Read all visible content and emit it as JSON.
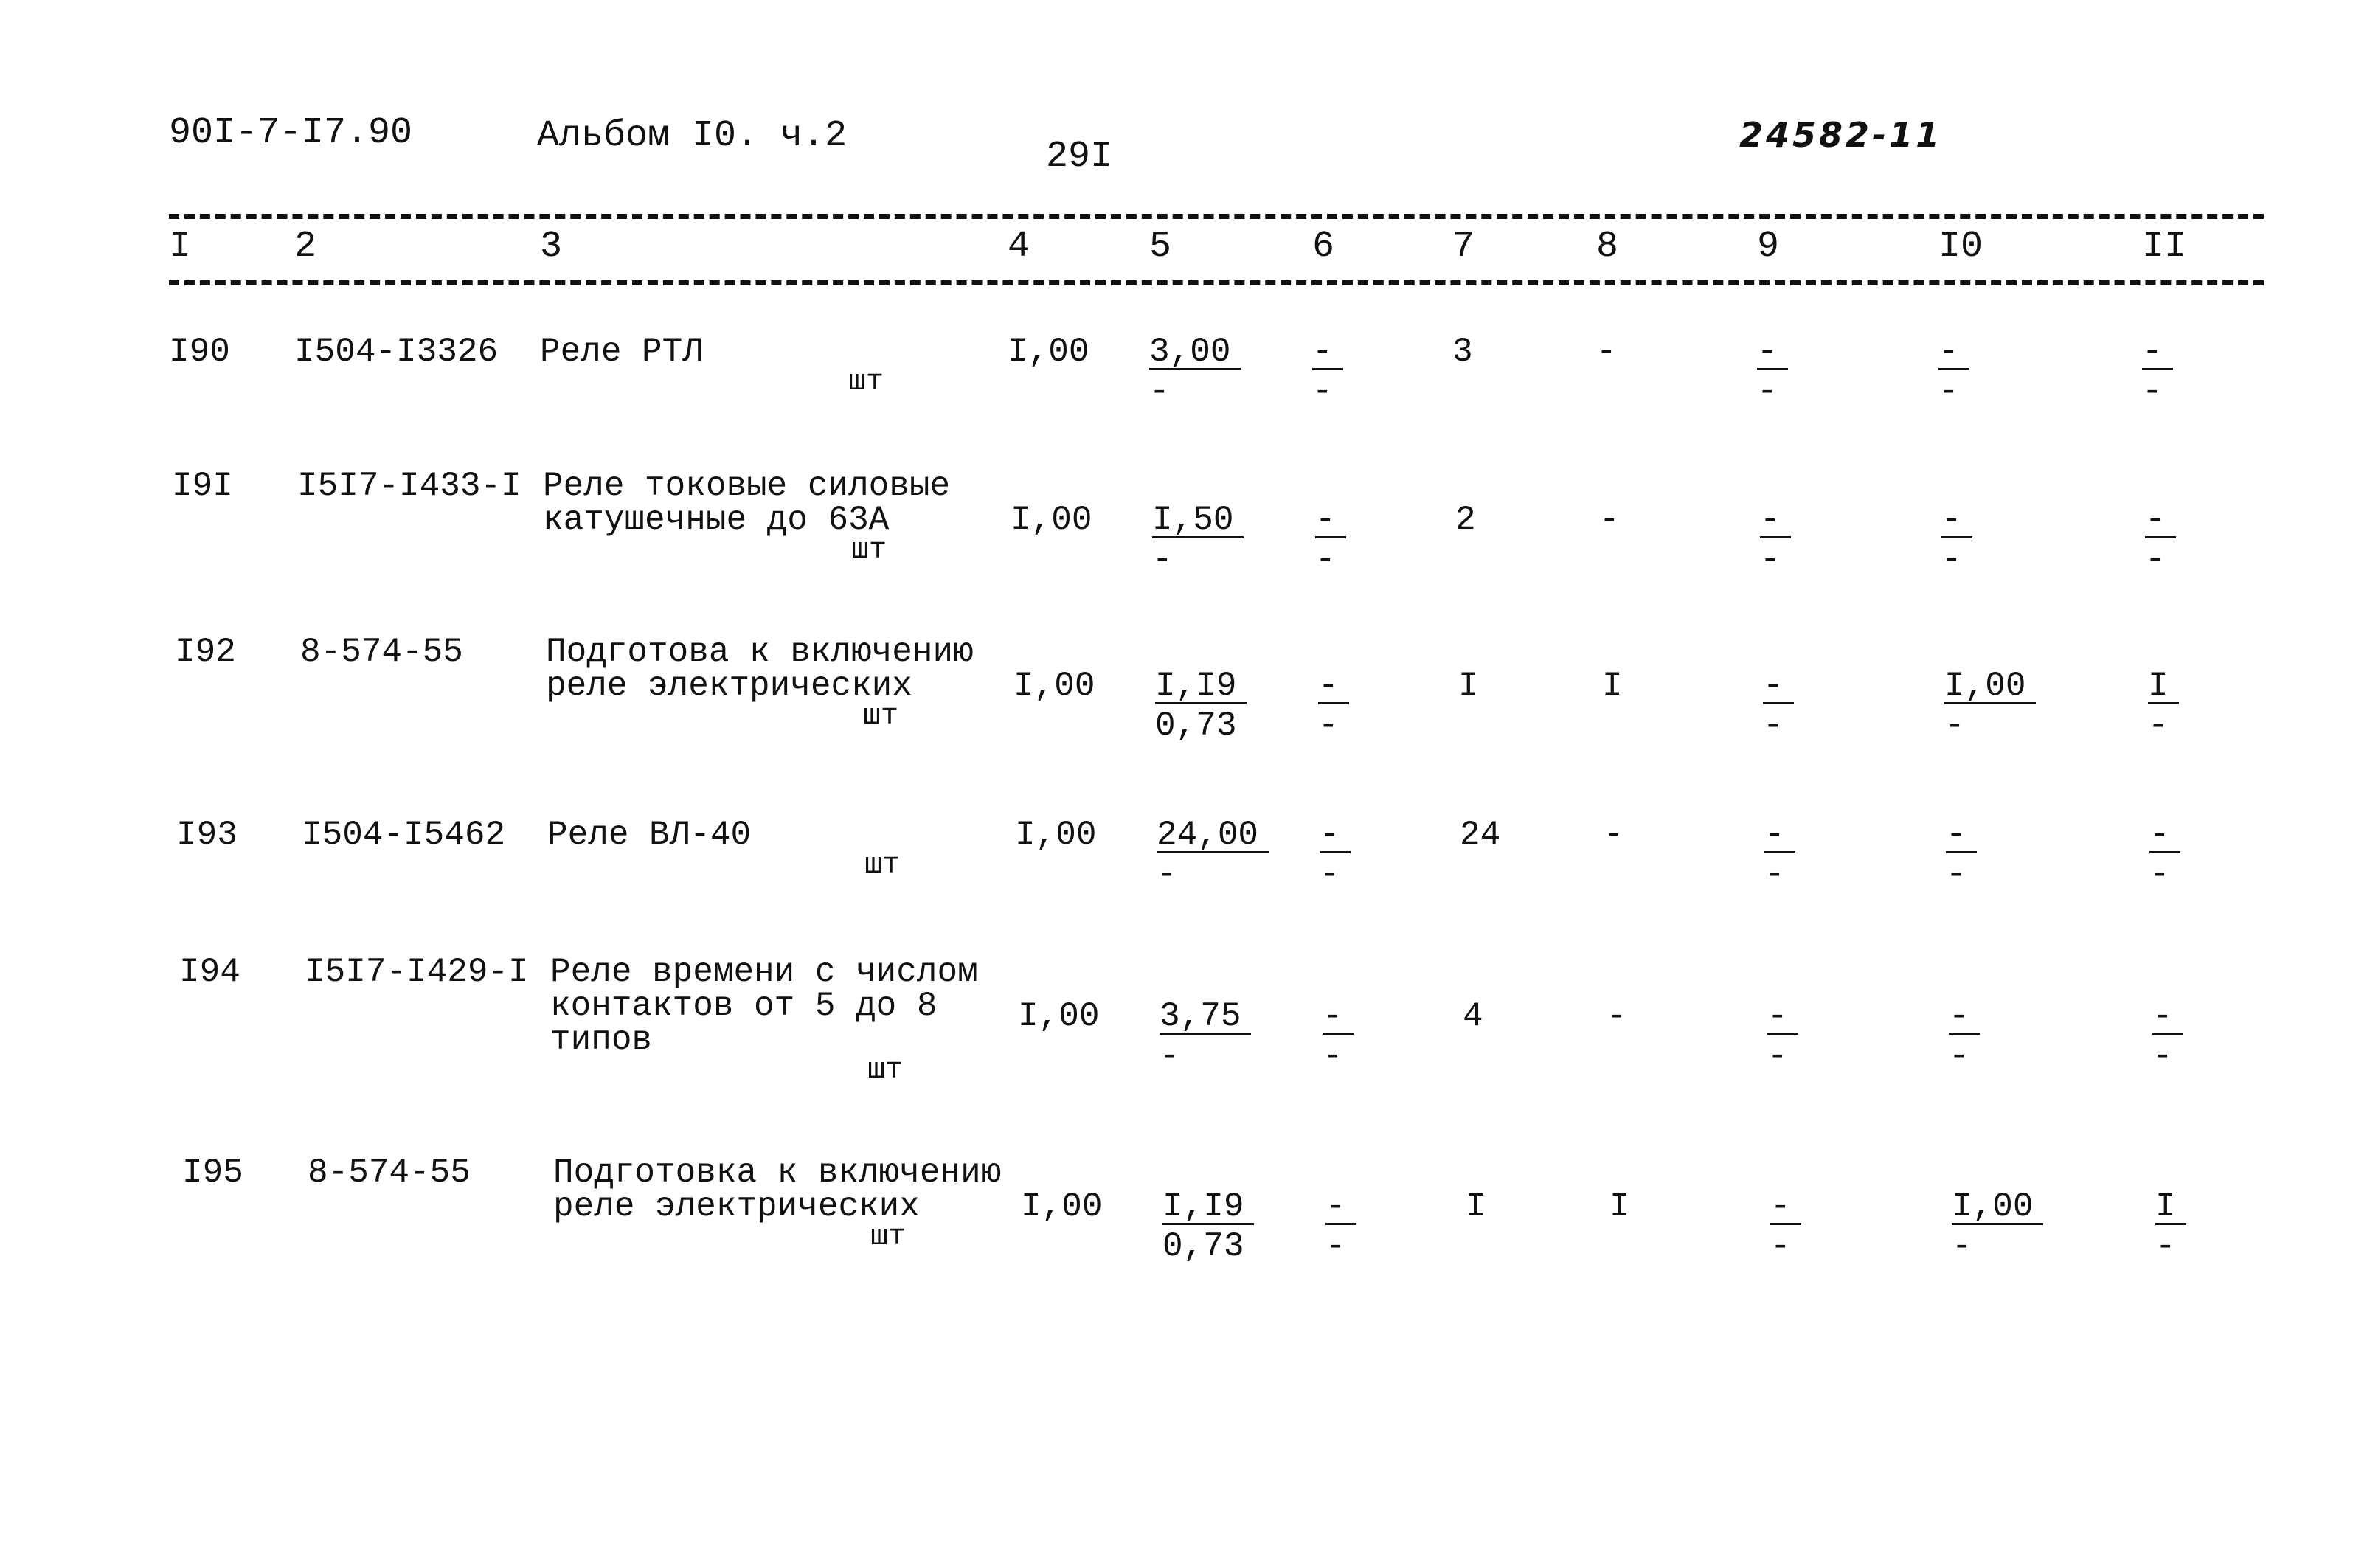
{
  "header": {
    "doc_code": "90I-7-I7.90",
    "album": "Альбом I0. ч.2",
    "page_number": "29I",
    "handwritten_number": "24582-11"
  },
  "columns": [
    "I",
    "2",
    "3",
    "4",
    "5",
    "6",
    "7",
    "8",
    "9",
    "I0",
    "II"
  ],
  "rows": [
    {
      "num": "I90",
      "code": "I504-I3326",
      "name": [
        "Реле РТЛ"
      ],
      "unit": "шт",
      "c4": "I,00",
      "c5": {
        "t": "3,00",
        "b": "-"
      },
      "c6": {
        "t": "-",
        "b": "-"
      },
      "c7": "3",
      "c8": "-",
      "c9": {
        "t": "-",
        "b": "-"
      },
      "c10": {
        "t": "-",
        "b": "-"
      },
      "c11": {
        "t": "-",
        "b": "-"
      }
    },
    {
      "num": "I9I",
      "code": "I5I7-I433-I",
      "name": [
        "Реле токовые силовые",
        "катушечные до 63А"
      ],
      "unit": "шт",
      "c4": "I,00",
      "c5": {
        "t": "I,50",
        "b": "-"
      },
      "c6": {
        "t": "-",
        "b": "-"
      },
      "c7": "2",
      "c8": "-",
      "c9": {
        "t": "-",
        "b": "-"
      },
      "c10": {
        "t": "-",
        "b": "-"
      },
      "c11": {
        "t": "-",
        "b": "-"
      }
    },
    {
      "num": "I92",
      "code": "8-574-55",
      "name": [
        "Подготова к включению",
        "реле электрических"
      ],
      "unit": "шт",
      "c4": "I,00",
      "c5": {
        "t": "I,I9",
        "b": "0,73"
      },
      "c6": {
        "t": "-",
        "b": "-"
      },
      "c7": "I",
      "c8": "I",
      "c9": {
        "t": "-",
        "b": "-"
      },
      "c10": {
        "t": "I,00",
        "b": "-"
      },
      "c11": {
        "t": "I",
        "b": "-"
      }
    },
    {
      "num": "I93",
      "code": "I504-I5462",
      "name": [
        "Реле ВЛ-40"
      ],
      "unit": "шт",
      "c4": "I,00",
      "c5": {
        "t": "24,00",
        "b": "-"
      },
      "c6": {
        "t": "-",
        "b": "-"
      },
      "c7": "24",
      "c8": "-",
      "c9": {
        "t": "-",
        "b": "-"
      },
      "c10": {
        "t": "-",
        "b": "-"
      },
      "c11": {
        "t": "-",
        "b": "-"
      }
    },
    {
      "num": "I94",
      "code": "I5I7-I429-I",
      "name": [
        "Реле времени с числом",
        "контактов от 5 до 8",
        "типов"
      ],
      "unit": "шт",
      "c4": "I,00",
      "c5": {
        "t": "3,75",
        "b": "-"
      },
      "c6": {
        "t": "-",
        "b": "-"
      },
      "c7": "4",
      "c8": "-",
      "c9": {
        "t": "-",
        "b": "-"
      },
      "c10": {
        "t": "-",
        "b": "-"
      },
      "c11": {
        "t": "-",
        "b": "-"
      }
    },
    {
      "num": "I95",
      "code": "8-574-55",
      "name": [
        "Подготовка к включению",
        "реле электрических"
      ],
      "unit": "шт",
      "c4": "I,00",
      "c5": {
        "t": "I,I9",
        "b": "0,73"
      },
      "c6": {
        "t": "-",
        "b": "-"
      },
      "c7": "I",
      "c8": "I",
      "c9": {
        "t": "-",
        "b": "-"
      },
      "c10": {
        "t": "I,00",
        "b": "-"
      },
      "c11": {
        "t": "I",
        "b": "-"
      }
    }
  ]
}
